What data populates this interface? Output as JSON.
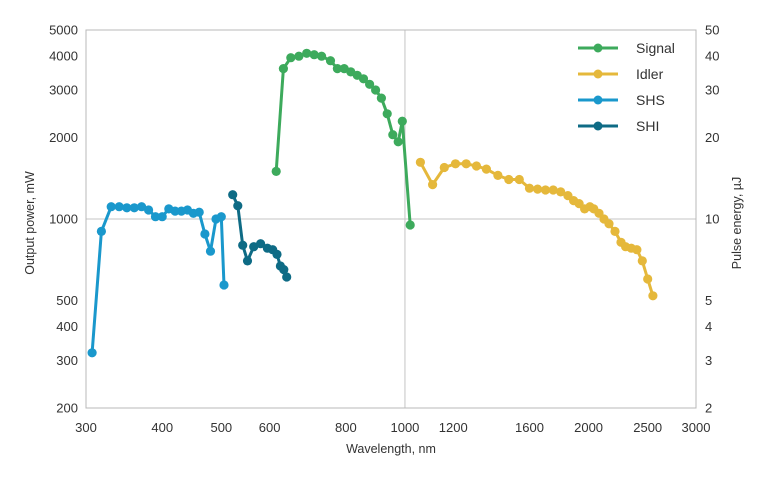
{
  "chart_data": {
    "type": "line",
    "xlabel": "Wavelength, nm",
    "ylabel": "Output power, mW",
    "y2label": "Pulse energy, µJ",
    "x_scale": "log",
    "y_scale": "log",
    "xlim": [
      300,
      3000
    ],
    "ylim": [
      200,
      5000
    ],
    "y2lim": [
      2,
      50
    ],
    "grid": "gridlines at x=1000 and y=1000 only",
    "legend_position": "top-right",
    "x_ticks": [
      {
        "value": 300,
        "label": "300"
      },
      {
        "value": 400,
        "label": "400"
      },
      {
        "value": 500,
        "label": "500"
      },
      {
        "value": 600,
        "label": "600"
      },
      {
        "value": 800,
        "label": "800"
      },
      {
        "value": 1000,
        "label": "1000"
      },
      {
        "value": 1200,
        "label": "1200"
      },
      {
        "value": 1600,
        "label": "1600"
      },
      {
        "value": 2000,
        "label": "2000"
      },
      {
        "value": 2500,
        "label": "2500"
      },
      {
        "value": 3000,
        "label": "3000"
      }
    ],
    "y_ticks": [
      {
        "value": 200,
        "label": "200"
      },
      {
        "value": 300,
        "label": "300"
      },
      {
        "value": 400,
        "label": "400"
      },
      {
        "value": 500,
        "label": "500"
      },
      {
        "value": 1000,
        "label": "1000"
      },
      {
        "value": 2000,
        "label": "2000"
      },
      {
        "value": 3000,
        "label": "3000"
      },
      {
        "value": 4000,
        "label": "4000"
      },
      {
        "value": 5000,
        "label": "5000"
      }
    ],
    "y2_ticks": [
      {
        "value": 2,
        "label": "2"
      },
      {
        "value": 3,
        "label": "3"
      },
      {
        "value": 4,
        "label": "4"
      },
      {
        "value": 5,
        "label": "5"
      },
      {
        "value": 10,
        "label": "10"
      },
      {
        "value": 20,
        "label": "20"
      },
      {
        "value": 30,
        "label": "30"
      },
      {
        "value": 40,
        "label": "40"
      },
      {
        "value": 50,
        "label": "50"
      }
    ],
    "series": [
      {
        "name": "Signal",
        "color": "#3daa5c",
        "points": [
          [
            615,
            1500
          ],
          [
            632,
            3600
          ],
          [
            650,
            3950
          ],
          [
            670,
            4000
          ],
          [
            690,
            4100
          ],
          [
            710,
            4050
          ],
          [
            730,
            4000
          ],
          [
            755,
            3850
          ],
          [
            775,
            3600
          ],
          [
            795,
            3600
          ],
          [
            815,
            3500
          ],
          [
            835,
            3400
          ],
          [
            855,
            3300
          ],
          [
            875,
            3150
          ],
          [
            895,
            3000
          ],
          [
            915,
            2800
          ],
          [
            935,
            2450
          ],
          [
            955,
            2050
          ],
          [
            975,
            1930
          ],
          [
            990,
            2300
          ],
          [
            1020,
            950
          ]
        ]
      },
      {
        "name": "Idler",
        "color": "#e5b83b",
        "points": [
          [
            1060,
            1620
          ],
          [
            1110,
            1340
          ],
          [
            1160,
            1550
          ],
          [
            1210,
            1600
          ],
          [
            1260,
            1600
          ],
          [
            1310,
            1570
          ],
          [
            1360,
            1530
          ],
          [
            1420,
            1450
          ],
          [
            1480,
            1400
          ],
          [
            1540,
            1400
          ],
          [
            1600,
            1300
          ],
          [
            1650,
            1290
          ],
          [
            1700,
            1280
          ],
          [
            1750,
            1280
          ],
          [
            1800,
            1260
          ],
          [
            1850,
            1220
          ],
          [
            1890,
            1170
          ],
          [
            1930,
            1140
          ],
          [
            1970,
            1090
          ],
          [
            2010,
            1110
          ],
          [
            2040,
            1090
          ],
          [
            2080,
            1050
          ],
          [
            2120,
            1000
          ],
          [
            2160,
            960
          ],
          [
            2210,
            900
          ],
          [
            2260,
            820
          ],
          [
            2300,
            790
          ],
          [
            2350,
            780
          ],
          [
            2400,
            770
          ],
          [
            2450,
            700
          ],
          [
            2500,
            600
          ],
          [
            2550,
            520
          ]
        ]
      },
      {
        "name": "SHS",
        "color": "#1a98cc",
        "points": [
          [
            307,
            320
          ],
          [
            318,
            900
          ],
          [
            330,
            1110
          ],
          [
            340,
            1110
          ],
          [
            350,
            1100
          ],
          [
            360,
            1100
          ],
          [
            370,
            1110
          ],
          [
            380,
            1080
          ],
          [
            390,
            1020
          ],
          [
            400,
            1020
          ],
          [
            410,
            1090
          ],
          [
            420,
            1070
          ],
          [
            430,
            1070
          ],
          [
            440,
            1080
          ],
          [
            450,
            1050
          ],
          [
            460,
            1060
          ],
          [
            470,
            880
          ],
          [
            480,
            760
          ],
          [
            490,
            1000
          ],
          [
            500,
            1020
          ],
          [
            505,
            570
          ]
        ]
      },
      {
        "name": "SHI",
        "color": "#0e6b85",
        "points": [
          [
            522,
            1230
          ],
          [
            532,
            1120
          ],
          [
            542,
            800
          ],
          [
            552,
            700
          ],
          [
            565,
            790
          ],
          [
            580,
            810
          ],
          [
            595,
            780
          ],
          [
            607,
            770
          ],
          [
            617,
            740
          ],
          [
            625,
            670
          ],
          [
            633,
            650
          ],
          [
            640,
            610
          ]
        ]
      }
    ]
  },
  "legend": [
    {
      "label": "Signal",
      "color": "#3daa5c"
    },
    {
      "label": "Idler",
      "color": "#e5b83b"
    },
    {
      "label": "SHS",
      "color": "#1a98cc"
    },
    {
      "label": "SHI",
      "color": "#0e6b85"
    }
  ]
}
